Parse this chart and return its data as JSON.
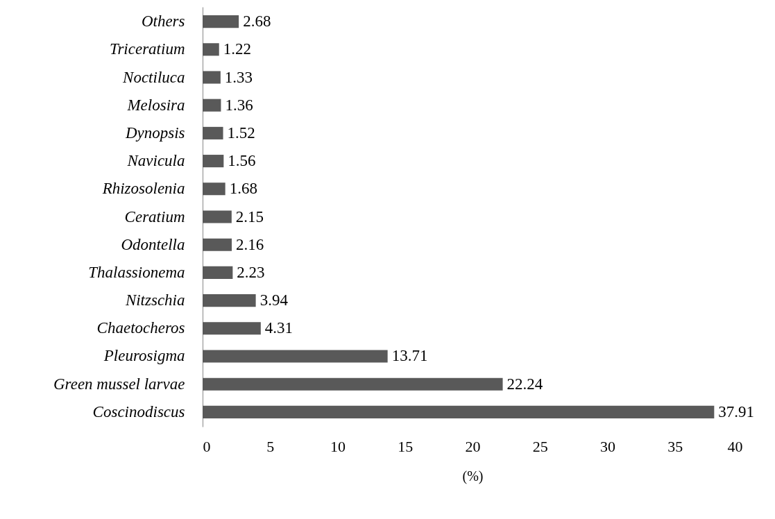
{
  "chart_data": {
    "type": "bar",
    "orientation": "horizontal",
    "xlabel": "(%)",
    "categories": [
      "Others",
      "Triceratium",
      "Noctiluca",
      "Melosira",
      "Dynopsis",
      "Navicula",
      "Rhizosolenia",
      "Ceratium",
      "Odontella",
      "Thalassionema",
      "Nitzschia",
      "Chaetocheros",
      "Pleurosigma",
      "Green mussel larvae",
      "Coscinodiscus"
    ],
    "values": [
      2.68,
      1.22,
      1.33,
      1.36,
      1.52,
      1.56,
      1.68,
      2.15,
      2.16,
      2.23,
      3.94,
      4.31,
      13.71,
      22.24,
      37.91
    ],
    "color": "#595959",
    "xlim": [
      0,
      40
    ],
    "xticks": [
      0,
      5,
      10,
      15,
      20,
      25,
      30,
      35,
      40
    ],
    "data_labels": true
  }
}
